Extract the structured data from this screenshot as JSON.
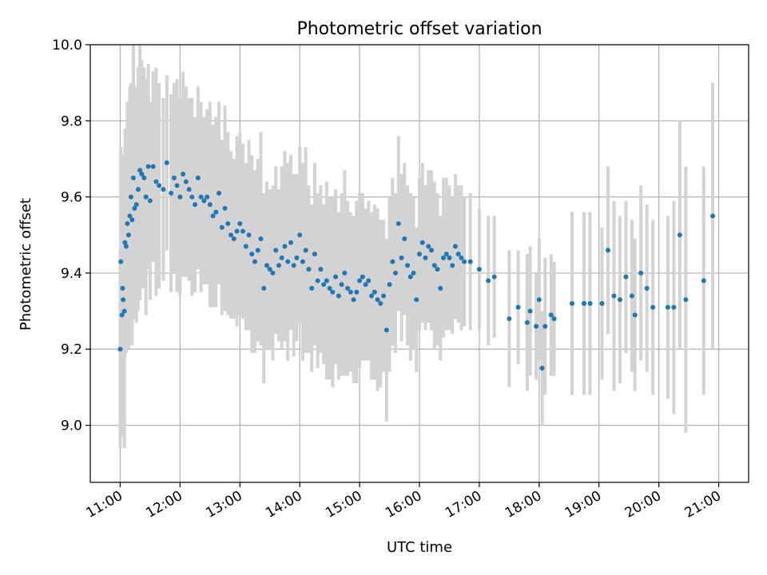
{
  "chart_data": {
    "type": "scatter",
    "title": "Photometric offset variation",
    "xlabel": "UTC time",
    "ylabel": "Photometric offset",
    "x_unit": "hour",
    "xlim": [
      10.5,
      21.5
    ],
    "ylim": [
      8.85,
      10.0
    ],
    "grid": true,
    "x_ticks": [
      {
        "value": 11,
        "label": "11:00"
      },
      {
        "value": 12,
        "label": "12:00"
      },
      {
        "value": 13,
        "label": "13:00"
      },
      {
        "value": 14,
        "label": "14:00"
      },
      {
        "value": 15,
        "label": "15:00"
      },
      {
        "value": 16,
        "label": "16:00"
      },
      {
        "value": 17,
        "label": "17:00"
      },
      {
        "value": 18,
        "label": "18:00"
      },
      {
        "value": 19,
        "label": "19:00"
      },
      {
        "value": 20,
        "label": "20:00"
      },
      {
        "value": 21,
        "label": "21:00"
      }
    ],
    "y_ticks": [
      {
        "value": 9.0,
        "label": "9.0"
      },
      {
        "value": 9.2,
        "label": "9.2"
      },
      {
        "value": 9.4,
        "label": "9.4"
      },
      {
        "value": 9.6,
        "label": "9.6"
      },
      {
        "value": 9.8,
        "label": "9.8"
      },
      {
        "value": 10.0,
        "label": "10.0"
      }
    ],
    "colors": {
      "points": "#1f77b4",
      "errorbars": "#d3d3d3",
      "grid": "#b0b0b0"
    },
    "x": [
      11.0,
      11.01,
      11.03,
      11.04,
      11.05,
      11.07,
      11.08,
      11.1,
      11.12,
      11.14,
      11.16,
      11.18,
      11.2,
      11.22,
      11.24,
      11.27,
      11.3,
      11.33,
      11.36,
      11.4,
      11.43,
      11.47,
      11.5,
      11.55,
      11.6,
      11.65,
      11.72,
      11.78,
      11.85,
      11.9,
      11.95,
      12.0,
      12.05,
      12.1,
      12.15,
      12.2,
      12.25,
      12.3,
      12.35,
      12.4,
      12.45,
      12.5,
      12.55,
      12.6,
      12.65,
      12.7,
      12.75,
      12.8,
      12.85,
      12.9,
      12.95,
      13.0,
      13.05,
      13.1,
      13.15,
      13.2,
      13.25,
      13.3,
      13.35,
      13.4,
      13.45,
      13.5,
      13.55,
      13.6,
      13.65,
      13.7,
      13.75,
      13.8,
      13.85,
      13.9,
      13.95,
      14.0,
      14.05,
      14.1,
      14.15,
      14.2,
      14.25,
      14.3,
      14.35,
      14.4,
      14.45,
      14.5,
      14.55,
      14.6,
      14.65,
      14.7,
      14.75,
      14.8,
      14.85,
      14.9,
      14.95,
      15.0,
      15.05,
      15.1,
      15.15,
      15.2,
      15.25,
      15.3,
      15.35,
      15.4,
      15.45,
      15.5,
      15.55,
      15.6,
      15.65,
      15.7,
      15.75,
      15.8,
      15.85,
      15.9,
      15.95,
      16.0,
      16.05,
      16.1,
      16.15,
      16.2,
      16.25,
      16.3,
      16.35,
      16.4,
      16.45,
      16.5,
      16.55,
      16.6,
      16.65,
      16.7,
      16.75,
      16.85,
      17.0,
      17.15,
      17.25,
      17.5,
      17.65,
      17.8,
      17.85,
      17.95,
      18.0,
      18.05,
      18.1,
      18.2,
      18.25,
      18.55,
      18.75,
      18.85,
      19.05,
      19.15,
      19.25,
      19.35,
      19.45,
      19.55,
      19.6,
      19.7,
      19.8,
      19.9,
      20.15,
      20.25,
      20.35,
      20.45,
      20.75,
      20.9
    ],
    "y": [
      9.2,
      9.43,
      9.29,
      9.36,
      9.33,
      9.3,
      9.48,
      9.47,
      9.53,
      9.5,
      9.55,
      9.6,
      9.54,
      9.65,
      9.57,
      9.58,
      9.62,
      9.67,
      9.66,
      9.65,
      9.6,
      9.68,
      9.59,
      9.68,
      9.64,
      9.63,
      9.62,
      9.69,
      9.61,
      9.65,
      9.63,
      9.6,
      9.66,
      9.64,
      9.62,
      9.6,
      9.58,
      9.65,
      9.6,
      9.59,
      9.6,
      9.58,
      9.55,
      9.56,
      9.61,
      9.52,
      9.57,
      9.53,
      9.5,
      9.49,
      9.51,
      9.53,
      9.51,
      9.47,
      9.5,
      9.45,
      9.43,
      9.46,
      9.49,
      9.36,
      9.42,
      9.41,
      9.4,
      9.46,
      9.42,
      9.44,
      9.47,
      9.43,
      9.48,
      9.42,
      9.44,
      9.5,
      9.43,
      9.46,
      9.41,
      9.36,
      9.45,
      9.38,
      9.41,
      9.37,
      9.38,
      9.36,
      9.35,
      9.39,
      9.34,
      9.37,
      9.4,
      9.36,
      9.35,
      9.33,
      9.35,
      9.38,
      9.39,
      9.37,
      9.38,
      9.34,
      9.35,
      9.33,
      9.32,
      9.34,
      9.25,
      9.37,
      9.43,
      9.4,
      9.53,
      9.44,
      9.49,
      9.42,
      9.39,
      9.4,
      9.33,
      9.45,
      9.48,
      9.44,
      9.47,
      9.46,
      9.42,
      9.41,
      9.36,
      9.44,
      9.45,
      9.44,
      9.42,
      9.47,
      9.45,
      9.44,
      9.43,
      9.43,
      9.41,
      9.38,
      9.39,
      9.28,
      9.31,
      9.27,
      9.3,
      9.26,
      9.33,
      9.15,
      9.26,
      9.29,
      9.28,
      9.32,
      9.32,
      9.32,
      9.32,
      9.46,
      9.34,
      9.33,
      9.39,
      9.34,
      9.29,
      9.4,
      9.36,
      9.31,
      9.31,
      9.31,
      9.5,
      9.33,
      9.38,
      9.55
    ],
    "yerr": [
      0.26,
      0.3,
      0.32,
      0.35,
      0.34,
      0.36,
      0.3,
      0.28,
      0.32,
      0.3,
      0.34,
      0.3,
      0.33,
      0.36,
      0.29,
      0.31,
      0.32,
      0.34,
      0.3,
      0.29,
      0.31,
      0.27,
      0.26,
      0.25,
      0.3,
      0.27,
      0.24,
      0.23,
      0.26,
      0.25,
      0.28,
      0.26,
      0.27,
      0.25,
      0.24,
      0.26,
      0.23,
      0.24,
      0.25,
      0.22,
      0.23,
      0.27,
      0.24,
      0.25,
      0.24,
      0.23,
      0.27,
      0.24,
      0.22,
      0.21,
      0.25,
      0.24,
      0.23,
      0.22,
      0.25,
      0.26,
      0.24,
      0.24,
      0.28,
      0.25,
      0.22,
      0.21,
      0.23,
      0.22,
      0.2,
      0.24,
      0.25,
      0.26,
      0.23,
      0.24,
      0.22,
      0.23,
      0.26,
      0.27,
      0.22,
      0.22,
      0.24,
      0.23,
      0.22,
      0.21,
      0.26,
      0.24,
      0.25,
      0.23,
      0.22,
      0.24,
      0.27,
      0.23,
      0.21,
      0.22,
      0.24,
      0.23,
      0.22,
      0.2,
      0.21,
      0.22,
      0.23,
      0.24,
      0.22,
      0.2,
      0.24,
      0.23,
      0.22,
      0.21,
      0.23,
      0.22,
      0.2,
      0.21,
      0.22,
      0.2,
      0.19,
      0.2,
      0.21,
      0.19,
      0.2,
      0.21,
      0.22,
      0.2,
      0.19,
      0.21,
      0.2,
      0.19,
      0.18,
      0.19,
      0.18,
      0.19,
      0.17,
      0.18,
      0.16,
      0.17,
      0.16,
      0.18,
      0.15,
      0.18,
      0.17,
      0.14,
      0.16,
      0.15,
      0.18,
      0.16,
      0.15,
      0.24,
      0.24,
      0.24,
      0.2,
      0.22,
      0.25,
      0.22,
      0.2,
      0.2,
      0.2,
      0.23,
      0.22,
      0.23,
      0.24,
      0.28,
      0.3,
      0.35,
      0.3,
      0.35
    ]
  }
}
